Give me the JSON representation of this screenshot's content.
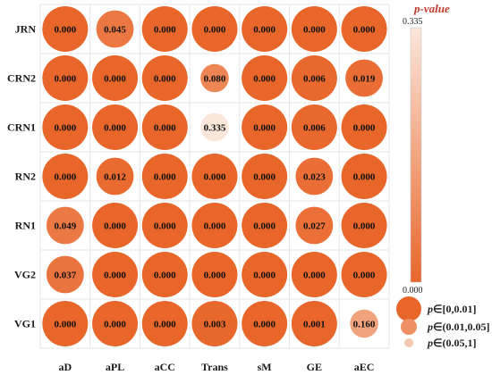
{
  "chart_data": {
    "type": "heatmap",
    "rows": [
      "JRN",
      "CRN2",
      "CRN1",
      "RN2",
      "RN1",
      "VG2",
      "VG1"
    ],
    "columns": [
      "aD",
      "aPL",
      "aCC",
      "Trans",
      "sM",
      "GE",
      "aEC"
    ],
    "values": [
      [
        0.0,
        0.045,
        0.0,
        0.0,
        0.0,
        0.0,
        0.0
      ],
      [
        0.0,
        0.0,
        0.0,
        0.08,
        0.0,
        0.006,
        0.019
      ],
      [
        0.0,
        0.0,
        0.0,
        0.335,
        0.0,
        0.006,
        0.0
      ],
      [
        0.0,
        0.012,
        0.0,
        0.0,
        0.0,
        0.023,
        0.0
      ],
      [
        0.049,
        0.0,
        0.0,
        0.0,
        0.0,
        0.027,
        0.0
      ],
      [
        0.037,
        0.0,
        0.0,
        0.0,
        0.0,
        0.0,
        0.0
      ],
      [
        0.0,
        0.0,
        0.0,
        0.003,
        0.0,
        0.001,
        0.16
      ]
    ],
    "labels": [
      [
        "0.000",
        "0.045",
        "0.000",
        "0.000",
        "0.000",
        "0.000",
        "0.000"
      ],
      [
        "0.000",
        "0.000",
        "0.000",
        "0.080",
        "0.000",
        "0.006",
        "0.019"
      ],
      [
        "0.000",
        "0.000",
        "0.000",
        "0.335",
        "0.000",
        "0.006",
        "0.000"
      ],
      [
        "0.000",
        "0.012",
        "0.000",
        "0.000",
        "0.000",
        "0.023",
        "0.000"
      ],
      [
        "0.049",
        "0.000",
        "0.000",
        "0.000",
        "0.000",
        "0.027",
        "0.000"
      ],
      [
        "0.037",
        "0.000",
        "0.000",
        "0.000",
        "0.000",
        "0.000",
        "0.000"
      ],
      [
        "0.000",
        "0.000",
        "0.000",
        "0.003",
        "0.000",
        "0.001",
        "0.160"
      ]
    ],
    "colorbar": {
      "title_prefix": "p",
      "title_suffix": "-value",
      "max_label": "0.335",
      "min_label": "0.000",
      "range": [
        0,
        0.335
      ],
      "color_low": "#e8662a",
      "color_high": "#fbe6da"
    },
    "size_legend": [
      {
        "prefix": "p",
        "range": "∈[0,0.01]"
      },
      {
        "prefix": "p",
        "range": "∈(0.01,0.05]"
      },
      {
        "prefix": "p",
        "range": "∈(0.05,1]"
      }
    ],
    "colors": {
      "title": "#c0392b",
      "grid": "#e6e6e6",
      "text": "#111111"
    }
  }
}
